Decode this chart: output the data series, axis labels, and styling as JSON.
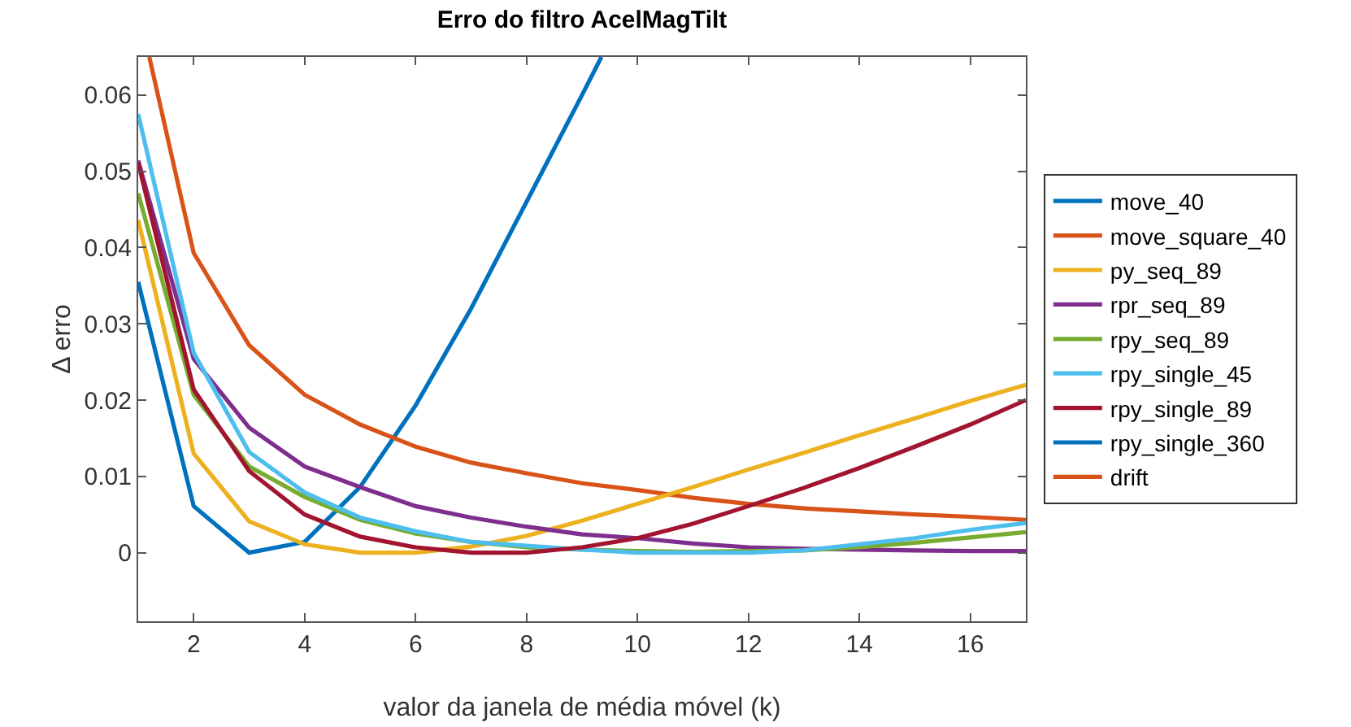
{
  "chart_data": {
    "type": "line",
    "title": "Erro do filtro AcelMagTilt",
    "xlabel": "valor da janela de média móvel (k)",
    "ylabel": "Δ erro",
    "x": [
      1,
      2,
      3,
      4,
      5,
      6,
      7,
      8,
      9,
      10,
      11,
      12,
      13,
      14,
      15,
      16,
      17
    ],
    "xlim": [
      1,
      17
    ],
    "xticks": [
      2,
      4,
      6,
      8,
      10,
      12,
      14,
      16
    ],
    "ylim": [
      -0.009,
      0.065
    ],
    "yticks": [
      0,
      0.01,
      0.02,
      0.03,
      0.04,
      0.05,
      0.06
    ],
    "grid": false,
    "legend": "right",
    "line_style": "solid",
    "marker": "none",
    "series": [
      {
        "name": "move_40",
        "color": "#0072bd",
        "x": [
          1,
          2,
          3,
          4,
          5,
          6,
          7,
          8,
          9,
          9.35
        ],
        "values": [
          0.0355,
          0.0061,
          0.0,
          0.0014,
          0.0086,
          0.0193,
          0.032,
          0.046,
          0.06,
          0.065
        ]
      },
      {
        "name": "move_square_40",
        "color": "#d95319",
        "x": [
          1.2,
          2,
          3,
          4,
          5,
          6,
          7,
          8,
          9,
          10,
          11,
          12,
          13,
          14,
          15,
          16,
          17
        ],
        "values": [
          0.065,
          0.0393,
          0.0272,
          0.0207,
          0.0168,
          0.0139,
          0.0118,
          0.0104,
          0.0091,
          0.0082,
          0.0072,
          0.0064,
          0.0058,
          0.0054,
          0.005,
          0.0047,
          0.0043
        ]
      },
      {
        "name": "py_seq_89",
        "color": "#edb120",
        "values": [
          0.0436,
          0.013,
          0.0041,
          0.0011,
          0.0,
          0.0,
          0.0008,
          0.0022,
          0.0042,
          0.0064,
          0.0086,
          0.0109,
          0.0131,
          0.0154,
          0.0176,
          0.0199,
          0.022
        ]
      },
      {
        "name": "rpr_seq_89",
        "color": "#7e2f8e",
        "values": [
          0.0514,
          0.0254,
          0.0164,
          0.0113,
          0.0086,
          0.0061,
          0.0046,
          0.0034,
          0.0024,
          0.0019,
          0.0012,
          0.0007,
          0.0005,
          0.0004,
          0.0003,
          0.0002,
          0.0002
        ]
      },
      {
        "name": "rpy_seq_89",
        "color": "#77ac30",
        "values": [
          0.0471,
          0.0207,
          0.0113,
          0.0073,
          0.0043,
          0.0025,
          0.0014,
          0.0007,
          0.0004,
          0.0002,
          0.0001,
          0.0002,
          0.0003,
          0.0007,
          0.0013,
          0.002,
          0.0027
        ]
      },
      {
        "name": "rpy_single_45",
        "color": "#4dbeee",
        "values": [
          0.0575,
          0.0262,
          0.0132,
          0.0079,
          0.0046,
          0.0028,
          0.0014,
          0.0009,
          0.0004,
          0.0,
          0.0,
          0.0,
          0.0003,
          0.0011,
          0.0019,
          0.003,
          0.0039
        ]
      },
      {
        "name": "rpy_single_89",
        "color": "#a2142f",
        "values": [
          0.0511,
          0.0214,
          0.0107,
          0.005,
          0.0021,
          0.0007,
          0.0,
          0.0,
          0.0007,
          0.0019,
          0.0038,
          0.0061,
          0.0085,
          0.0111,
          0.0139,
          0.0168,
          0.02
        ]
      },
      {
        "name": "rpy_single_360",
        "color": "#0072bd",
        "values": [
          null,
          null,
          null,
          null,
          null,
          null,
          null,
          null,
          null,
          null,
          null,
          null,
          null,
          null,
          null,
          null,
          null
        ]
      },
      {
        "name": "drift",
        "color": "#d95319",
        "values": [
          null,
          null,
          null,
          null,
          null,
          null,
          null,
          null,
          null,
          null,
          null,
          null,
          null,
          null,
          null,
          null,
          null
        ]
      }
    ]
  }
}
